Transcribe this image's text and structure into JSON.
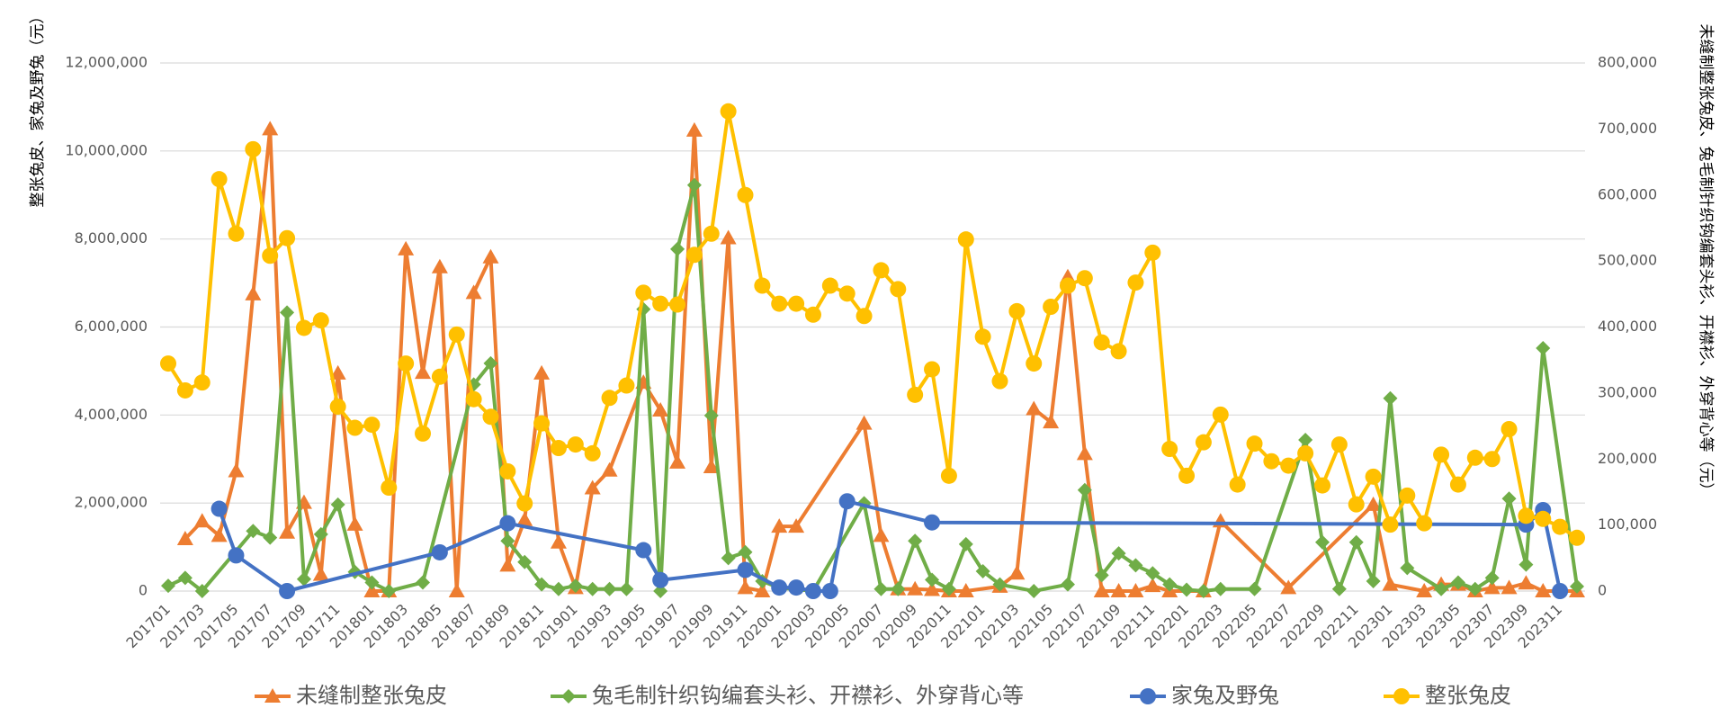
{
  "chart_data": {
    "type": "line",
    "y_label": "整张兔皮、家兔及野兔（元）",
    "y2_label": "未缝制整张兔皮、兔毛制针织钩编套头衫、开襟衫、外穿背心等（元）",
    "grid": true,
    "connect_gaps": true,
    "legend": "bottom",
    "ylim": [
      0,
      12000000
    ],
    "yticks": [
      0,
      {
        "value": 2000000,
        "label": "2,000,000"
      },
      {
        "value": 4000000,
        "label": "4,000,000"
      },
      {
        "value": 6000000,
        "label": "6,000,000"
      },
      {
        "value": 8000000,
        "label": "8,000,000"
      },
      {
        "value": 10000000,
        "label": "10,000,000"
      },
      {
        "value": 12000000,
        "label": "12,000,000"
      }
    ],
    "y2lim": [
      0,
      800000
    ],
    "y2ticks": [
      0,
      {
        "value": 100000,
        "label": "100,000"
      },
      {
        "value": 200000,
        "label": "200,000"
      },
      {
        "value": 300000,
        "label": "300,000"
      },
      {
        "value": 400000,
        "label": "400,000"
      },
      {
        "value": 500000,
        "label": "500,000"
      },
      {
        "value": 600000,
        "label": "600,000"
      },
      {
        "value": 700000,
        "label": "700,000"
      },
      {
        "value": 800000,
        "label": "800,000"
      }
    ],
    "categories": [
      "201701",
      null,
      "201703",
      null,
      "201705",
      null,
      "201707",
      null,
      "201709",
      null,
      "201711",
      null,
      "201801",
      null,
      "201803",
      null,
      "201805",
      null,
      "201807",
      null,
      "201809",
      null,
      "201811",
      null,
      "201901",
      null,
      "201903",
      null,
      "201905",
      null,
      "201907",
      null,
      "201909",
      null,
      "201911",
      null,
      "202001",
      null,
      "202003",
      null,
      "202005",
      null,
      "202007",
      null,
      "202009",
      null,
      "202011",
      null,
      "202101",
      null,
      "202103",
      null,
      "202105",
      null,
      "202107",
      null,
      "202109",
      null,
      "202111",
      null,
      "202201",
      null,
      "202203",
      null,
      "202205",
      null,
      "202207",
      null,
      "202209",
      null,
      "202211",
      null,
      "202301",
      null,
      "202303",
      null,
      "202305",
      null,
      "202307",
      null,
      "202309",
      null,
      "202311",
      null
    ],
    "series": [
      {
        "name": "未缝制整张兔皮",
        "color": "#ED7D31",
        "marker": "triangle",
        "axis": "y2",
        "values": [
          null,
          79000,
          106000,
          84000,
          182000,
          450000,
          700000,
          89000,
          134000,
          25000,
          330000,
          101000,
          0,
          0,
          518000,
          331000,
          491000,
          0,
          452000,
          506000,
          39000,
          108000,
          330000,
          74000,
          5000,
          156000,
          183000,
          null,
          316000,
          274000,
          195000,
          698000,
          188000,
          535000,
          5000,
          0,
          98000,
          98000,
          null,
          null,
          null,
          254000,
          84000,
          3000,
          3000,
          2000,
          0,
          0,
          null,
          7000,
          27000,
          276000,
          256000,
          476000,
          208000,
          0,
          0,
          0,
          8000,
          0,
          null,
          0,
          106000,
          null,
          null,
          null,
          5000,
          null,
          null,
          null,
          null,
          131000,
          10000,
          null,
          0,
          10000,
          10000,
          0,
          5000,
          5000,
          12000,
          0,
          null,
          0
        ]
      },
      {
        "name": "兔毛制针织钩编套头衫、开襟衫、外穿背心等",
        "color": "#70AD47",
        "marker": "diamond",
        "axis": "y2",
        "values": [
          8000,
          20000,
          0,
          null,
          null,
          91000,
          81000,
          422000,
          18000,
          86000,
          131000,
          29000,
          13000,
          0,
          null,
          13000,
          null,
          null,
          313000,
          345000,
          76000,
          44000,
          10000,
          3000,
          8000,
          3000,
          3000,
          3000,
          427000,
          0,
          518000,
          615000,
          266000,
          50000,
          59000,
          15000,
          5000,
          null,
          0,
          null,
          null,
          133000,
          3000,
          3000,
          76000,
          17000,
          3000,
          71000,
          30000,
          10000,
          null,
          0,
          null,
          10000,
          153000,
          24000,
          57000,
          39000,
          27000,
          10000,
          2000,
          0,
          3000,
          null,
          3000,
          null,
          null,
          229000,
          74000,
          3000,
          74000,
          15000,
          292000,
          35000,
          null,
          3000,
          13000,
          3000,
          20000,
          140000,
          40000,
          368000,
          null,
          7000
        ]
      },
      {
        "name": "家兔及野兔",
        "color": "#4472C4",
        "marker": "circle",
        "values": [
          null,
          null,
          null,
          1870000,
          810000,
          null,
          null,
          0,
          null,
          null,
          null,
          null,
          null,
          null,
          null,
          null,
          880000,
          null,
          null,
          null,
          1540000,
          null,
          null,
          null,
          null,
          null,
          null,
          null,
          930000,
          250000,
          null,
          null,
          null,
          null,
          480000,
          null,
          80000,
          80000,
          0,
          0,
          2040000,
          null,
          null,
          null,
          null,
          1560000,
          null,
          null,
          null,
          null,
          null,
          null,
          null,
          null,
          null,
          null,
          null,
          null,
          null,
          null,
          null,
          null,
          null,
          null,
          null,
          null,
          null,
          null,
          null,
          null,
          null,
          null,
          null,
          null,
          null,
          null,
          null,
          null,
          null,
          null,
          1510000,
          1840000,
          0,
          null
        ]
      },
      {
        "name": "整张兔皮",
        "color": "#FFC000",
        "marker": "circle",
        "values": [
          5170000,
          4560000,
          4740000,
          9360000,
          8120000,
          10040000,
          7620000,
          8020000,
          5980000,
          6150000,
          4190000,
          3710000,
          3780000,
          2350000,
          5170000,
          3580000,
          4870000,
          5830000,
          4360000,
          3960000,
          2720000,
          1990000,
          3810000,
          3250000,
          3330000,
          3130000,
          4390000,
          4670000,
          6780000,
          6530000,
          6510000,
          7640000,
          8120000,
          10900000,
          9000000,
          6940000,
          6530000,
          6530000,
          6280000,
          6940000,
          6760000,
          6250000,
          7290000,
          6860000,
          4460000,
          5040000,
          2620000,
          7990000,
          5780000,
          4770000,
          6360000,
          5170000,
          6460000,
          6940000,
          7110000,
          5650000,
          5450000,
          7010000,
          7690000,
          3230000,
          2620000,
          3380000,
          4010000,
          2420000,
          3350000,
          2950000,
          2850000,
          3130000,
          2400000,
          3330000,
          1970000,
          2600000,
          1510000,
          2170000,
          1540000,
          3100000,
          2420000,
          3030000,
          3000000,
          3680000,
          1710000,
          1640000,
          1460000,
          1210000
        ]
      }
    ]
  }
}
